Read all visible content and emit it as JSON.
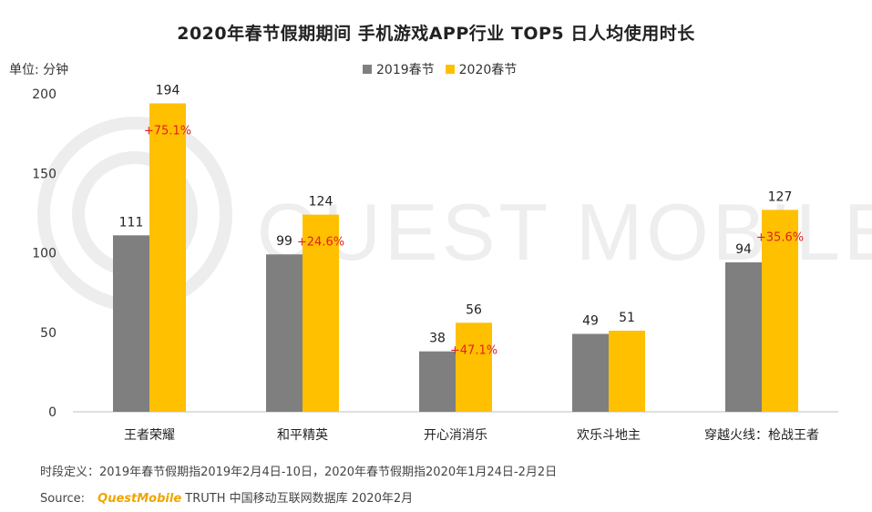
{
  "title": "2020年春节假期期间 手机游戏APP行业 TOP5 日人均使用时长",
  "unit_label": "单位: 分钟",
  "colors": {
    "series_2019": "#7f7f7f",
    "series_2020": "#ffc000",
    "growth_text": "#e02020",
    "axis": "#bfbfbf",
    "watermark": "#ececec"
  },
  "watermark_text": "QUEST MOBILE",
  "footnote": "时段定义：2019年春节假期指2019年2月4日-10日，2020年春节假期指2020年1月24日-2月2日",
  "source": {
    "prefix": "Source:",
    "brand": "QuestMobile",
    "rest": "TRUTH 中国移动互联网数据库 2020年2月"
  },
  "chart_data": {
    "type": "bar",
    "title": "2020年春节假期期间 手机游戏APP行业 TOP5 日人均使用时长",
    "xlabel": "",
    "ylabel": "单位: 分钟",
    "ylim": [
      0,
      200
    ],
    "yticks": [
      0,
      50,
      100,
      150,
      200
    ],
    "categories": [
      "王者荣耀",
      "和平精英",
      "开心消消乐",
      "欢乐斗地主",
      "穿越火线：枪战王者"
    ],
    "series": [
      {
        "name": "2019春节",
        "values": [
          111,
          99,
          38,
          49,
          94
        ]
      },
      {
        "name": "2020春节",
        "values": [
          194,
          124,
          56,
          51,
          127
        ]
      }
    ],
    "growth_labels": [
      "+75.1%",
      "+24.6%",
      "+47.1%",
      "",
      "+35.6%"
    ],
    "legend_position": "top-center",
    "grid": false
  }
}
